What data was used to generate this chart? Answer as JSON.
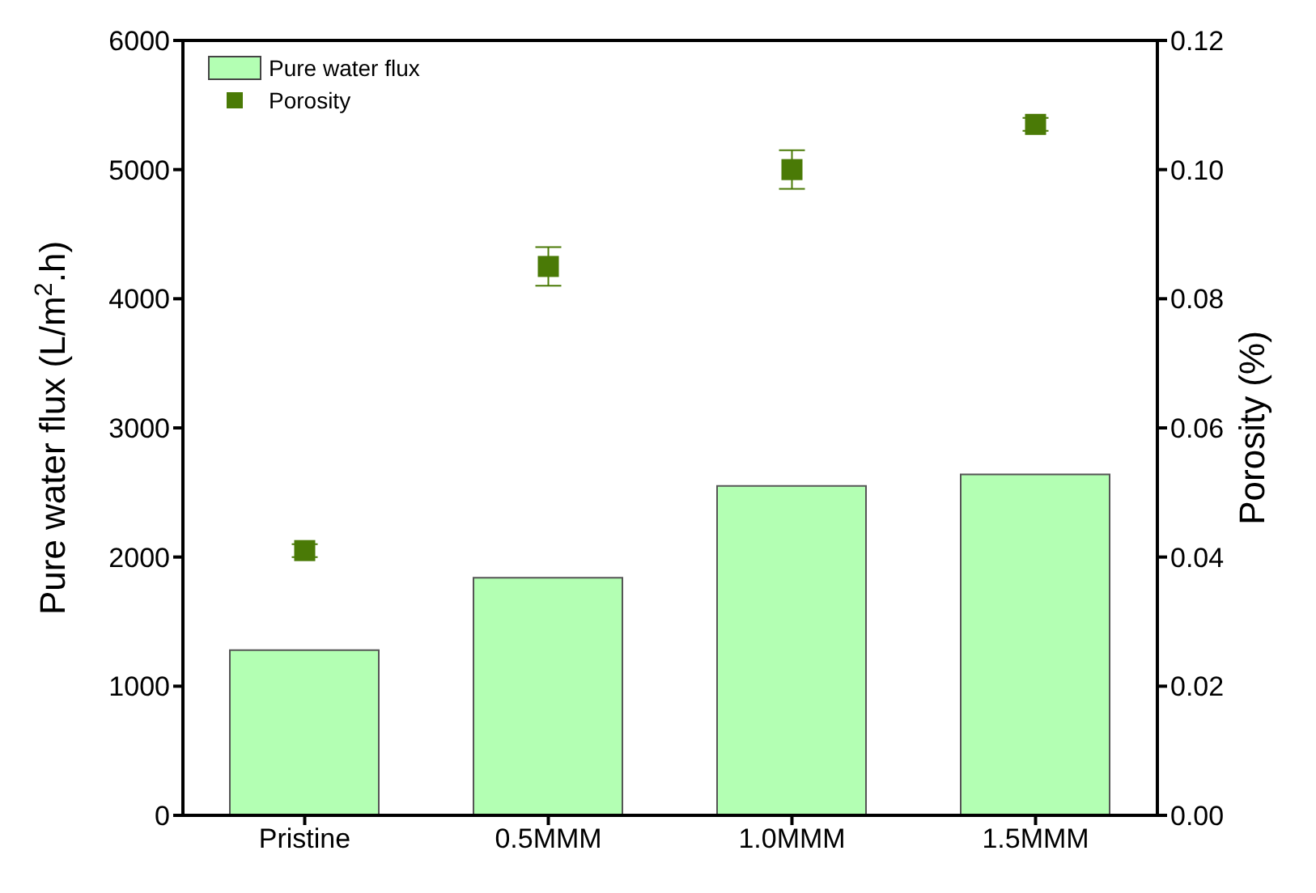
{
  "chart_data": {
    "type": "bar",
    "categories": [
      "Pristine",
      "0.5MMM",
      "1.0MMM",
      "1.5MMM"
    ],
    "series": [
      {
        "name": "Pure water flux",
        "type": "bar",
        "color": "#b3ffb3",
        "values": [
          1280,
          1840,
          2550,
          2640
        ]
      },
      {
        "name": "Porosity",
        "type": "scatter",
        "axis": "y2",
        "color": "#4a7a06",
        "marker": "square",
        "values": [
          0.041,
          0.085,
          0.1,
          0.107
        ],
        "errors": [
          0.001,
          0.003,
          0.003,
          0.001
        ]
      }
    ],
    "ylabel": "Pure water flux (L/m$^{2}$.h)",
    "y2label": "Porosity (%)",
    "ylim": [
      0,
      6000
    ],
    "yticks": [
      0,
      1000,
      2000,
      3000,
      4000,
      5000,
      6000
    ],
    "y2lim": [
      0,
      0.12
    ],
    "y2ticks": [
      {
        "value": 0,
        "label": "0.00"
      },
      {
        "value": 0.02,
        "label": "0.02"
      },
      {
        "value": 0.04,
        "label": "0.04"
      },
      {
        "value": 0.06,
        "label": "0.06"
      },
      {
        "value": 0.08,
        "label": "0.08"
      },
      {
        "value": 0.1,
        "label": "0.10"
      },
      {
        "value": 0.12,
        "label": "0.12"
      }
    ],
    "grid": false,
    "legend": "top left"
  }
}
